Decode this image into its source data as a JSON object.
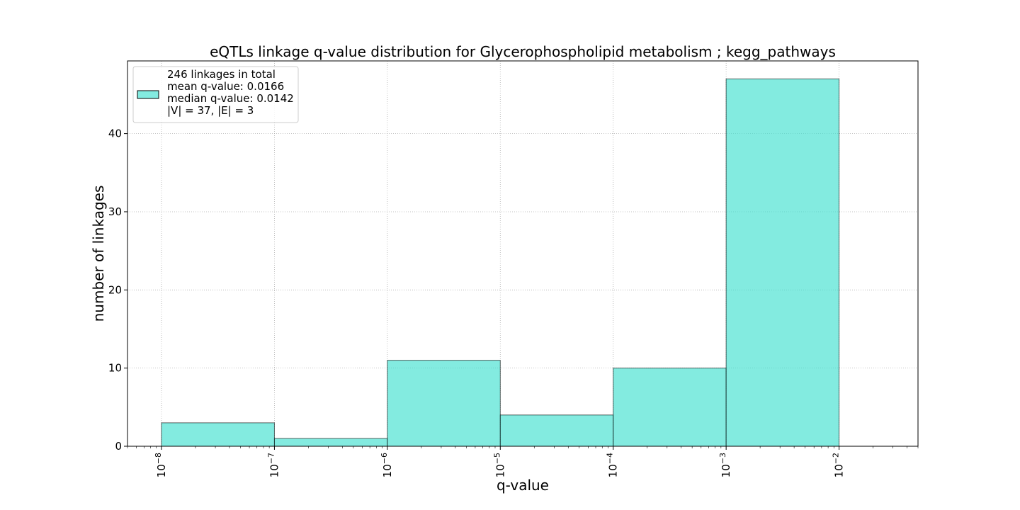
{
  "chart_data": {
    "type": "bar",
    "title": "eQTLs linkage q-value distribution for Glycerophospholipid metabolism ; kegg_pathways",
    "xlabel": "q-value",
    "ylabel": "number of linkages",
    "x_scale": "log",
    "xlim": [
      5e-09,
      0.05
    ],
    "ylim": [
      0,
      49.3
    ],
    "grid": true,
    "bar_color": "#40E0D0",
    "bar_fill_opacity": 0.65,
    "bar_edge_color": "#000000",
    "bins": [
      {
        "from": 1e-08,
        "to": 1e-07,
        "value": 3
      },
      {
        "from": 1e-07,
        "to": 1e-06,
        "value": 1
      },
      {
        "from": 1e-06,
        "to": 1e-05,
        "value": 11
      },
      {
        "from": 1e-05,
        "to": 0.0001,
        "value": 4
      },
      {
        "from": 0.0001,
        "to": 0.001,
        "value": 10
      },
      {
        "from": 0.001,
        "to": 0.01,
        "value": 47
      }
    ],
    "x_ticks": [
      {
        "value": 1e-08,
        "base": "10",
        "exp": "−8"
      },
      {
        "value": 1e-07,
        "base": "10",
        "exp": "−7"
      },
      {
        "value": 1e-06,
        "base": "10",
        "exp": "−6"
      },
      {
        "value": 1e-05,
        "base": "10",
        "exp": "−5"
      },
      {
        "value": 0.0001,
        "base": "10",
        "exp": "−4"
      },
      {
        "value": 0.001,
        "base": "10",
        "exp": "−3"
      },
      {
        "value": 0.01,
        "base": "10",
        "exp": "−2"
      }
    ],
    "y_ticks": [
      {
        "value": 0,
        "label": "0"
      },
      {
        "value": 10,
        "label": "10"
      },
      {
        "value": 20,
        "label": "20"
      },
      {
        "value": 30,
        "label": "30"
      },
      {
        "value": 40,
        "label": "40"
      }
    ],
    "legend": {
      "position": "upper-left",
      "lines": [
        "246 linkages in total",
        "mean q-value: 0.0166",
        "median q-value: 0.0142",
        "|V| = 37, |E| = 3"
      ]
    }
  }
}
